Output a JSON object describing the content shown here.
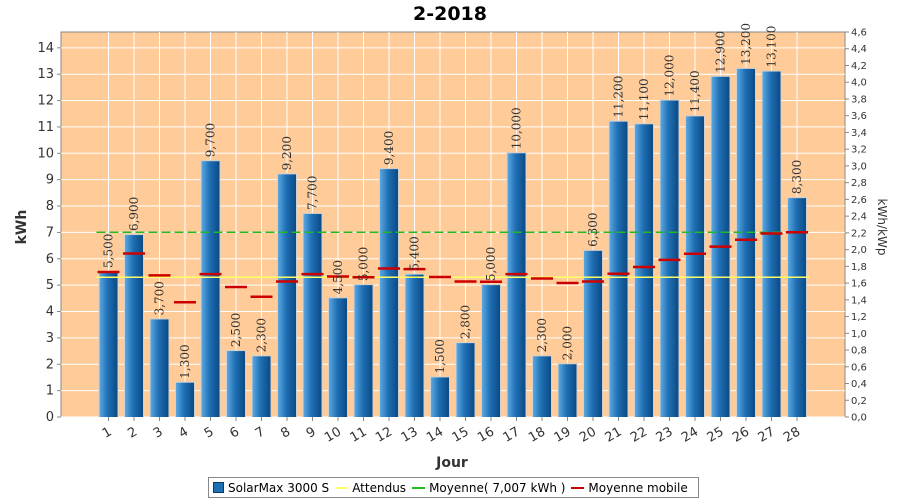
{
  "chart_data": {
    "type": "bar",
    "title": "2-2018",
    "xlabel": "Jour",
    "ylabel": "kWh",
    "ylabel_right": "kWh/kWp",
    "ylim": [
      0,
      14.6
    ],
    "ylim_right": [
      0,
      4.6
    ],
    "yticks": [
      "0",
      "1",
      "2",
      "3",
      "4",
      "5",
      "6",
      "7",
      "8",
      "9",
      "10",
      "11",
      "12",
      "13",
      "14"
    ],
    "yticks_right": [
      "0,0",
      "0,2",
      "0,4",
      "0,6",
      "0,8",
      "1,0",
      "1,2",
      "1,4",
      "1,6",
      "1,8",
      "2,0",
      "2,2",
      "2,4",
      "2,6",
      "2,8",
      "3,0",
      "3,2",
      "3,4",
      "3,6",
      "3,8",
      "4,0",
      "4,2",
      "4,4",
      "4,6"
    ],
    "categories": [
      "1",
      "2",
      "3",
      "4",
      "5",
      "6",
      "7",
      "8",
      "9",
      "10",
      "11",
      "12",
      "13",
      "14",
      "15",
      "16",
      "17",
      "18",
      "19",
      "20",
      "21",
      "22",
      "23",
      "24",
      "25",
      "26",
      "27",
      "28"
    ],
    "series": [
      {
        "name": "SolarMax 3000 S",
        "type": "bar",
        "color": "#1f6fb4",
        "values": [
          5.5,
          6.9,
          3.7,
          1.3,
          9.7,
          2.5,
          2.3,
          9.2,
          7.7,
          4.5,
          5.0,
          9.4,
          5.4,
          1.5,
          2.8,
          5.0,
          10.0,
          2.3,
          2.0,
          6.3,
          11.2,
          11.1,
          12.0,
          11.4,
          12.9,
          13.2,
          13.1,
          8.3
        ],
        "labels": [
          "5,500",
          "6,900",
          "3,700",
          "1,300",
          "9,700",
          "2,500",
          "2,300",
          "9,200",
          "7,700",
          "4,500",
          "5,000",
          "9,400",
          "5,400",
          "1,500",
          "2,800",
          "5,000",
          "10,000",
          "2,300",
          "2,000",
          "6,300",
          "11,200",
          "11,100",
          "12,000",
          "11,400",
          "12,900",
          "13,200",
          "13,100",
          "8,300"
        ]
      },
      {
        "name": "Attendus",
        "type": "line",
        "color": "#ffff66",
        "value": 5.3
      },
      {
        "name": "Moyenne( 7,007 kWh )",
        "type": "line",
        "color": "#22bb22",
        "value": 7.007
      },
      {
        "name": "Moyenne mobile",
        "type": "marker",
        "color": "#cc0000",
        "values": [
          5.5,
          6.2,
          5.37,
          4.35,
          5.42,
          4.93,
          4.56,
          5.14,
          5.42,
          5.33,
          5.3,
          5.63,
          5.61,
          5.31,
          5.14,
          5.13,
          5.42,
          5.25,
          5.08,
          5.14,
          5.43,
          5.69,
          5.96,
          6.19,
          6.46,
          6.72,
          6.96,
          7.007
        ]
      }
    ],
    "grid": true,
    "legend": "bottom"
  }
}
